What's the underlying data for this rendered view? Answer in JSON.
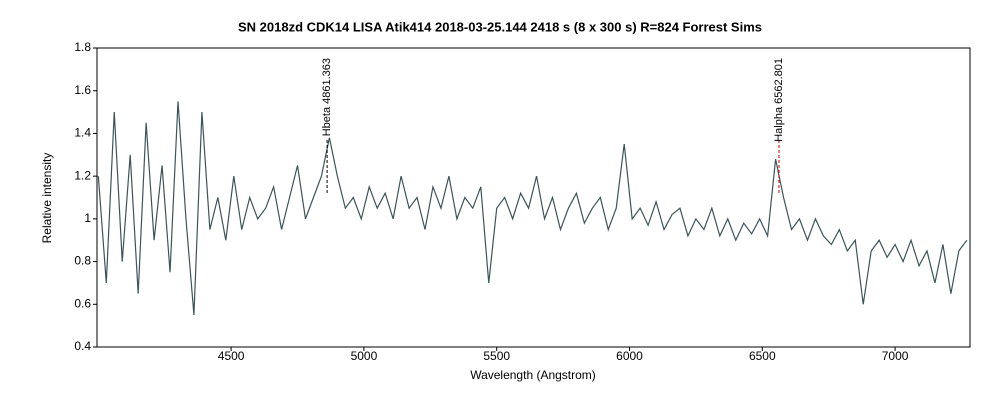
{
  "chart_data": {
    "type": "line",
    "title": "SN 2018zd CDK14 LISA Atik414  2018-03-25.144   2418 s (8 x 300 s) R=824  Forrest Sims",
    "x_label": "Wavelength (Angstrom)",
    "y_label": "Relative intensity",
    "xlim": [
      3995,
      7282
    ],
    "ylim": [
      0.4,
      1.8
    ],
    "xticks": [
      4500,
      5000,
      5500,
      6000,
      6500,
      7000
    ],
    "yticks": [
      0.4,
      0.6,
      0.8,
      1,
      1.2,
      1.4,
      1.6,
      1.8
    ],
    "grid": false,
    "x": [
      4000,
      4030,
      4060,
      4090,
      4120,
      4150,
      4180,
      4210,
      4240,
      4270,
      4300,
      4330,
      4360,
      4390,
      4420,
      4450,
      4480,
      4510,
      4540,
      4570,
      4600,
      4630,
      4660,
      4690,
      4720,
      4750,
      4780,
      4810,
      4840,
      4870,
      4900,
      4930,
      4960,
      4990,
      5020,
      5050,
      5080,
      5110,
      5140,
      5170,
      5200,
      5230,
      5260,
      5290,
      5320,
      5350,
      5380,
      5410,
      5440,
      5470,
      5500,
      5530,
      5560,
      5590,
      5620,
      5650,
      5680,
      5710,
      5740,
      5770,
      5800,
      5830,
      5860,
      5890,
      5920,
      5950,
      5980,
      6010,
      6040,
      6070,
      6100,
      6130,
      6160,
      6190,
      6220,
      6250,
      6280,
      6310,
      6340,
      6370,
      6400,
      6430,
      6460,
      6490,
      6520,
      6550,
      6580,
      6610,
      6640,
      6670,
      6700,
      6730,
      6760,
      6790,
      6820,
      6850,
      6880,
      6910,
      6940,
      6970,
      7000,
      7030,
      7060,
      7090,
      7120,
      7150,
      7180,
      7210,
      7240,
      7270
    ],
    "series": [
      {
        "color": "#3d5457",
        "values": [
          1.2,
          0.7,
          1.5,
          0.8,
          1.3,
          0.65,
          1.45,
          0.9,
          1.25,
          0.75,
          1.55,
          1.0,
          0.55,
          1.5,
          0.95,
          1.1,
          0.9,
          1.2,
          0.95,
          1.1,
          1.0,
          1.05,
          1.15,
          0.95,
          1.1,
          1.25,
          1.0,
          1.1,
          1.2,
          1.38,
          1.2,
          1.05,
          1.1,
          1.0,
          1.15,
          1.05,
          1.12,
          1.0,
          1.2,
          1.05,
          1.1,
          0.95,
          1.15,
          1.05,
          1.2,
          1.0,
          1.1,
          1.05,
          1.15,
          0.7,
          1.05,
          1.1,
          1.0,
          1.12,
          1.05,
          1.2,
          1.0,
          1.1,
          0.95,
          1.05,
          1.12,
          0.98,
          1.05,
          1.1,
          0.95,
          1.05,
          1.35,
          1.0,
          1.05,
          0.97,
          1.08,
          0.95,
          1.02,
          1.05,
          0.92,
          1.0,
          0.95,
          1.05,
          0.92,
          1.0,
          0.9,
          0.98,
          0.93,
          1.0,
          0.92,
          1.28,
          1.1,
          0.95,
          1.0,
          0.9,
          1.0,
          0.92,
          0.88,
          0.95,
          0.85,
          0.9,
          0.6,
          0.85,
          0.9,
          0.82,
          0.88,
          0.8,
          0.9,
          0.78,
          0.85,
          0.7,
          0.88,
          0.65,
          0.85,
          0.9
        ]
      }
    ],
    "annotations": [
      {
        "text": "Hbeta 4861.363",
        "x": 4861.363,
        "color": "#000000"
      },
      {
        "text": "Halpha 6562.801",
        "x": 6562.801,
        "color": "#cc0000"
      }
    ]
  }
}
